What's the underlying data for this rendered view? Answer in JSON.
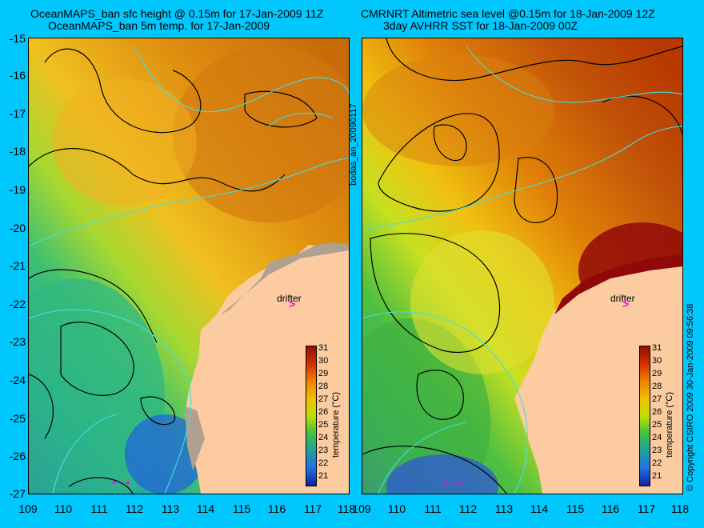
{
  "left_panel": {
    "title_line1": "OceanMAPS_ban sfc height @ 0.15m for 17-Jan-2009 11Z",
    "title_line2": "OceanMAPS_ban 5m temp. for 17-Jan-2009",
    "drifter_label": "drifter",
    "drifter_marker": ">"
  },
  "right_panel": {
    "title_line1": "CMRNRT Altimetric sea level  @0.15m  for 18-Jan-2009 12Z",
    "title_line2": "3day AVHRR SST for 18-Jan-2009 00Z",
    "drifter_label": "drifter",
    "drifter_marker": ">"
  },
  "y_axis": {
    "ticks": [
      "-15",
      "-16",
      "-17",
      "-18",
      "-19",
      "-20",
      "-21",
      "-22",
      "-23",
      "-24",
      "-25",
      "-26",
      "-27"
    ]
  },
  "x_axis": {
    "ticks": [
      "109",
      "110",
      "111",
      "112",
      "113",
      "114",
      "115",
      "116",
      "117",
      "118"
    ]
  },
  "colorbar": {
    "title": "temperature (°C)",
    "ticks": [
      "31",
      "30",
      "29",
      "28",
      "27",
      "26",
      "25",
      "24",
      "23",
      "22",
      "21"
    ]
  },
  "side_text": {
    "run_id": "bodas_an_20090117",
    "copyright": "© Copyright CSIRO 2009   30-Jan-2009 09:56:38"
  },
  "colors": {
    "background": "#00c8ff",
    "land": "#fccba0",
    "contour": "#000000",
    "isobath": "#40e0e0",
    "drifter": "#ff00ff"
  }
}
